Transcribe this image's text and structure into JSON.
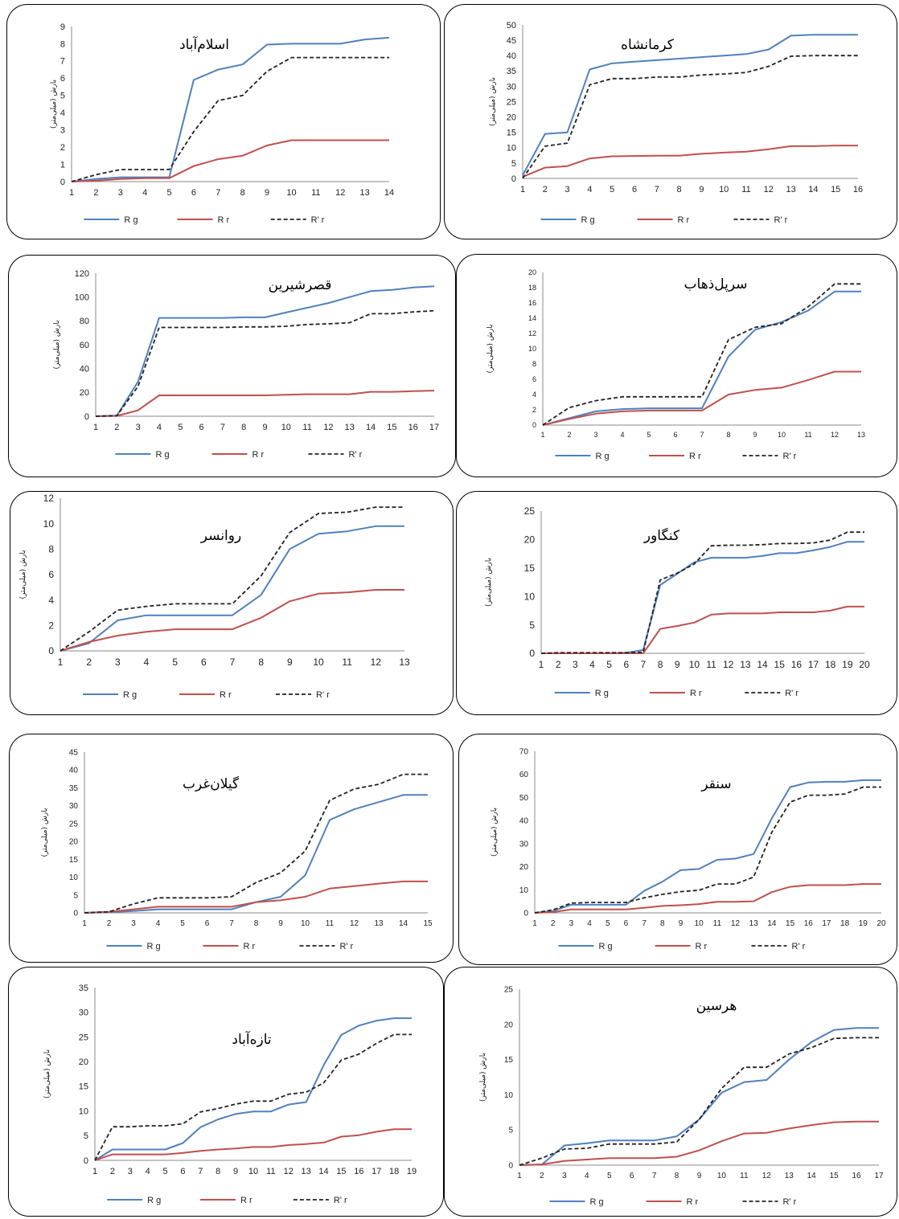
{
  "colors": {
    "Rg": "#4F81BD",
    "Rr": "#C0504D",
    "R'r": "#222222"
  },
  "chart_data": [
    {
      "type": "line",
      "title": "اسلام‌آباد",
      "ylabel": "بارش (میلی‌متر)",
      "x": [
        1,
        2,
        3,
        4,
        5,
        6,
        7,
        8,
        9,
        10,
        11,
        12,
        13,
        14
      ],
      "ylim": [
        0,
        9
      ],
      "yticks": [
        0,
        1,
        2,
        3,
        4,
        5,
        6,
        7,
        8,
        9
      ],
      "series": [
        {
          "name": "R g",
          "values": [
            0,
            0.15,
            0.25,
            0.25,
            0.25,
            5.9,
            6.5,
            6.8,
            7.95,
            8.0,
            8.0,
            8.0,
            8.25,
            8.35
          ]
        },
        {
          "name": "R r",
          "values": [
            0,
            0.05,
            0.15,
            0.2,
            0.2,
            0.9,
            1.3,
            1.5,
            2.1,
            2.4,
            2.4,
            2.4,
            2.4,
            2.4
          ]
        },
        {
          "name": "R' r",
          "values": [
            0,
            0.4,
            0.7,
            0.7,
            0.7,
            2.9,
            4.7,
            5.0,
            6.4,
            7.2,
            7.2,
            7.2,
            7.2,
            7.2
          ]
        }
      ]
    },
    {
      "type": "line",
      "title": "کرمانشاه",
      "ylabel": "بارش (میلی‌متر)",
      "x": [
        1,
        2,
        3,
        4,
        5,
        6,
        7,
        8,
        9,
        10,
        11,
        12,
        13,
        14,
        15,
        16
      ],
      "ylim": [
        0,
        50
      ],
      "yticks": [
        0,
        5,
        10,
        15,
        20,
        25,
        30,
        35,
        40,
        45,
        50
      ],
      "series": [
        {
          "name": "R g",
          "values": [
            1,
            14.5,
            15,
            35.5,
            37.5,
            38,
            38.5,
            39,
            39.5,
            40,
            40.5,
            42,
            46.5,
            46.8,
            46.8,
            46.8
          ]
        },
        {
          "name": "R r",
          "values": [
            0.5,
            3.5,
            4,
            6.5,
            7.2,
            7.3,
            7.4,
            7.4,
            8,
            8.4,
            8.7,
            9.5,
            10.5,
            10.5,
            10.7,
            10.7
          ]
        },
        {
          "name": "R' r",
          "values": [
            0,
            10.5,
            11.5,
            30.5,
            32.5,
            32.5,
            33,
            33,
            33.7,
            34,
            34.5,
            36.5,
            39.8,
            40,
            40,
            40
          ]
        }
      ]
    },
    {
      "type": "line",
      "title": "قصرشیرین",
      "ylabel": "بارش (میلی‌متر)",
      "x": [
        1,
        2,
        3,
        4,
        5,
        6,
        7,
        8,
        9,
        10,
        11,
        12,
        13,
        14,
        15,
        16,
        17
      ],
      "ylim": [
        0,
        120
      ],
      "yticks": [
        0,
        20,
        40,
        60,
        80,
        100,
        120
      ],
      "series": [
        {
          "name": "R g",
          "values": [
            0,
            0.5,
            29,
            82.5,
            82.5,
            82.5,
            82.5,
            83,
            83,
            87,
            91,
            95,
            100,
            105,
            106,
            108,
            109
          ]
        },
        {
          "name": "R r",
          "values": [
            0,
            0.3,
            5,
            17.5,
            17.5,
            17.5,
            17.5,
            17.5,
            17.5,
            18,
            18.5,
            18.5,
            18.5,
            20.5,
            20.5,
            21,
            21.5
          ]
        },
        {
          "name": "R' r",
          "values": [
            0,
            0.5,
            25,
            74.5,
            74.5,
            74.5,
            74.5,
            75,
            75,
            75.5,
            77,
            77.5,
            78.5,
            86,
            86,
            87.5,
            88.5
          ]
        }
      ]
    },
    {
      "type": "line",
      "title": "سرپل‌ذهاب",
      "ylabel": "بارش (میلی‌متر)",
      "x": [
        1,
        2,
        3,
        4,
        5,
        6,
        7,
        8,
        9,
        10,
        11,
        12,
        13
      ],
      "ylim": [
        0,
        20
      ],
      "yticks": [
        0,
        2,
        4,
        6,
        8,
        10,
        12,
        14,
        16,
        18,
        20
      ],
      "series": [
        {
          "name": "R g",
          "values": [
            0,
            0.9,
            1.8,
            2.1,
            2.2,
            2.2,
            2.2,
            9,
            12.5,
            13.5,
            15,
            17.5,
            17.5
          ]
        },
        {
          "name": "R r",
          "values": [
            0,
            0.8,
            1.5,
            1.8,
            1.9,
            1.9,
            1.9,
            4,
            4.6,
            4.9,
            5.9,
            7,
            7
          ]
        },
        {
          "name": "R' r",
          "values": [
            0,
            2.3,
            3.2,
            3.7,
            3.7,
            3.7,
            3.7,
            11.2,
            12.8,
            13.3,
            15.5,
            18.5,
            18.5
          ]
        }
      ]
    },
    {
      "type": "line",
      "title": "روانسر",
      "ylabel": "بارش (میلی‌متر)",
      "x": [
        1,
        2,
        3,
        4,
        5,
        6,
        7,
        8,
        9,
        10,
        11,
        12,
        13
      ],
      "ylim": [
        0,
        12
      ],
      "yticks": [
        0,
        2,
        4,
        6,
        8,
        10,
        12
      ],
      "series": [
        {
          "name": "R g",
          "values": [
            0,
            0.6,
            2.4,
            2.8,
            2.8,
            2.8,
            2.8,
            4.4,
            8,
            9.2,
            9.4,
            9.8,
            9.8
          ]
        },
        {
          "name": "R r",
          "values": [
            0,
            0.7,
            1.2,
            1.5,
            1.7,
            1.7,
            1.7,
            2.6,
            3.9,
            4.5,
            4.6,
            4.8,
            4.8
          ]
        },
        {
          "name": "R' r",
          "values": [
            0,
            1.5,
            3.2,
            3.5,
            3.7,
            3.7,
            3.7,
            5.9,
            9.3,
            10.8,
            10.9,
            11.3,
            11.3
          ]
        }
      ]
    },
    {
      "type": "line",
      "title": "کنگاور",
      "ylabel": "بارش (میلی‌متر)",
      "x": [
        1,
        2,
        3,
        4,
        5,
        6,
        7,
        8,
        9,
        10,
        11,
        12,
        13,
        14,
        15,
        16,
        17,
        18,
        19,
        20
      ],
      "ylim": [
        0,
        25
      ],
      "yticks": [
        0,
        5,
        10,
        15,
        20,
        25
      ],
      "series": [
        {
          "name": "R g",
          "values": [
            0,
            0,
            0,
            0,
            0,
            0.1,
            0.6,
            12,
            14,
            16,
            16.8,
            16.8,
            16.8,
            17.1,
            17.6,
            17.6,
            18.1,
            18.7,
            19.6,
            19.6
          ]
        },
        {
          "name": "R r",
          "values": [
            0,
            0,
            0,
            0,
            0,
            0,
            0,
            4.3,
            4.8,
            5.4,
            6.8,
            7,
            7,
            7,
            7.2,
            7.2,
            7.2,
            7.5,
            8.2,
            8.2
          ]
        },
        {
          "name": "R' r",
          "values": [
            0,
            0.1,
            0.1,
            0.1,
            0.1,
            0.1,
            0.2,
            12.9,
            14.1,
            15.7,
            18.9,
            19,
            19,
            19.1,
            19.3,
            19.3,
            19.4,
            19.9,
            21.3,
            21.3
          ]
        }
      ]
    },
    {
      "type": "line",
      "title": "گیلان‌غرب",
      "ylabel": "بارش (میلی‌متر)",
      "x": [
        1,
        2,
        3,
        4,
        5,
        6,
        7,
        8,
        9,
        10,
        11,
        12,
        13,
        14,
        15
      ],
      "ylim": [
        0,
        45
      ],
      "yticks": [
        0,
        5,
        10,
        15,
        20,
        25,
        30,
        35,
        40,
        45
      ],
      "series": [
        {
          "name": "R g",
          "values": [
            0,
            0.2,
            0.5,
            1,
            1,
            1,
            1,
            3,
            4.5,
            10.5,
            26,
            29,
            31,
            33,
            33
          ]
        },
        {
          "name": "R r",
          "values": [
            0,
            0.3,
            1,
            1.7,
            1.7,
            1.7,
            1.7,
            3,
            3.5,
            4.5,
            6.8,
            7.5,
            8.2,
            8.8,
            8.8
          ]
        },
        {
          "name": "R' r",
          "values": [
            0,
            0.3,
            2.5,
            4.2,
            4.2,
            4.2,
            4.5,
            8.5,
            11.2,
            17.3,
            31.5,
            34.7,
            36,
            38.8,
            38.8
          ]
        }
      ]
    },
    {
      "type": "line",
      "title": "سنقر",
      "ylabel": "بارش (میلی‌متر)",
      "x": [
        1,
        2,
        3,
        4,
        5,
        6,
        7,
        8,
        9,
        10,
        11,
        12,
        13,
        14,
        15,
        16,
        17,
        18,
        19,
        20
      ],
      "ylim": [
        0,
        70
      ],
      "yticks": [
        0,
        10,
        20,
        30,
        40,
        50,
        60,
        70
      ],
      "series": [
        {
          "name": "R g",
          "values": [
            0,
            0.8,
            3.5,
            3.5,
            3.5,
            3.5,
            9.5,
            13.5,
            18.5,
            19,
            23,
            23.5,
            25.5,
            41,
            54.5,
            56.5,
            56.8,
            56.8,
            57.5,
            57.5
          ]
        },
        {
          "name": "R r",
          "values": [
            0,
            0.3,
            1.5,
            1.5,
            1.5,
            1.5,
            2.2,
            3,
            3.3,
            3.8,
            4.8,
            4.8,
            5,
            9,
            11.3,
            12,
            12,
            12,
            12.5,
            12.5
          ]
        },
        {
          "name": "R' r",
          "values": [
            0,
            1.3,
            4.2,
            4.5,
            4.5,
            4.5,
            6.5,
            8,
            9.2,
            9.8,
            12.5,
            12.5,
            15.5,
            35,
            48,
            51,
            51,
            51.5,
            54.5,
            54.5
          ]
        }
      ]
    },
    {
      "type": "line",
      "title": "تازه‌آباد",
      "ylabel": "بارش (میلی‌متر)",
      "x": [
        1,
        2,
        3,
        4,
        5,
        6,
        7,
        8,
        9,
        10,
        11,
        12,
        13,
        14,
        15,
        16,
        17,
        18,
        19
      ],
      "ylim": [
        0,
        35
      ],
      "yticks": [
        0,
        5,
        10,
        15,
        20,
        25,
        30,
        35
      ],
      "series": [
        {
          "name": "R g",
          "values": [
            0,
            2.2,
            2.2,
            2.2,
            2.2,
            3.5,
            6.7,
            8.3,
            9.4,
            9.9,
            9.9,
            11.3,
            11.8,
            19.3,
            25.4,
            27.3,
            28.3,
            28.8,
            28.8
          ]
        },
        {
          "name": "R r",
          "values": [
            0,
            1.2,
            1.2,
            1.2,
            1.2,
            1.5,
            1.9,
            2.2,
            2.4,
            2.7,
            2.7,
            3.1,
            3.3,
            3.6,
            4.8,
            5.1,
            5.8,
            6.3,
            6.3
          ]
        },
        {
          "name": "R' r",
          "values": [
            0,
            6.8,
            6.8,
            7,
            7,
            7.4,
            9.8,
            10.5,
            11.4,
            12,
            12,
            13.4,
            13.8,
            15.7,
            20.3,
            21.5,
            23.7,
            25.5,
            25.5
          ]
        }
      ]
    },
    {
      "type": "line",
      "title": "هرسین",
      "ylabel": "بارش (میلی‌متر)",
      "x": [
        1,
        2,
        3,
        4,
        5,
        6,
        7,
        8,
        9,
        10,
        11,
        12,
        13,
        14,
        15,
        16,
        17
      ],
      "ylim": [
        0,
        25
      ],
      "yticks": [
        0,
        5,
        10,
        15,
        20,
        25
      ],
      "series": [
        {
          "name": "R g",
          "values": [
            0,
            0.1,
            2.8,
            3.1,
            3.5,
            3.5,
            3.5,
            4.1,
            6.5,
            10.3,
            11.8,
            12.1,
            15,
            17.5,
            19.2,
            19.5,
            19.5
          ]
        },
        {
          "name": "R r",
          "values": [
            0,
            0.1,
            0.6,
            0.8,
            1,
            1,
            1,
            1.2,
            2.1,
            3.4,
            4.5,
            4.6,
            5.2,
            5.7,
            6.1,
            6.2,
            6.2
          ]
        },
        {
          "name": "R' r",
          "values": [
            0,
            1,
            2.3,
            2.4,
            3,
            3,
            3,
            3.3,
            6.5,
            10.9,
            13.9,
            13.9,
            15.8,
            16.7,
            18,
            18.1,
            18.1
          ]
        }
      ]
    }
  ]
}
